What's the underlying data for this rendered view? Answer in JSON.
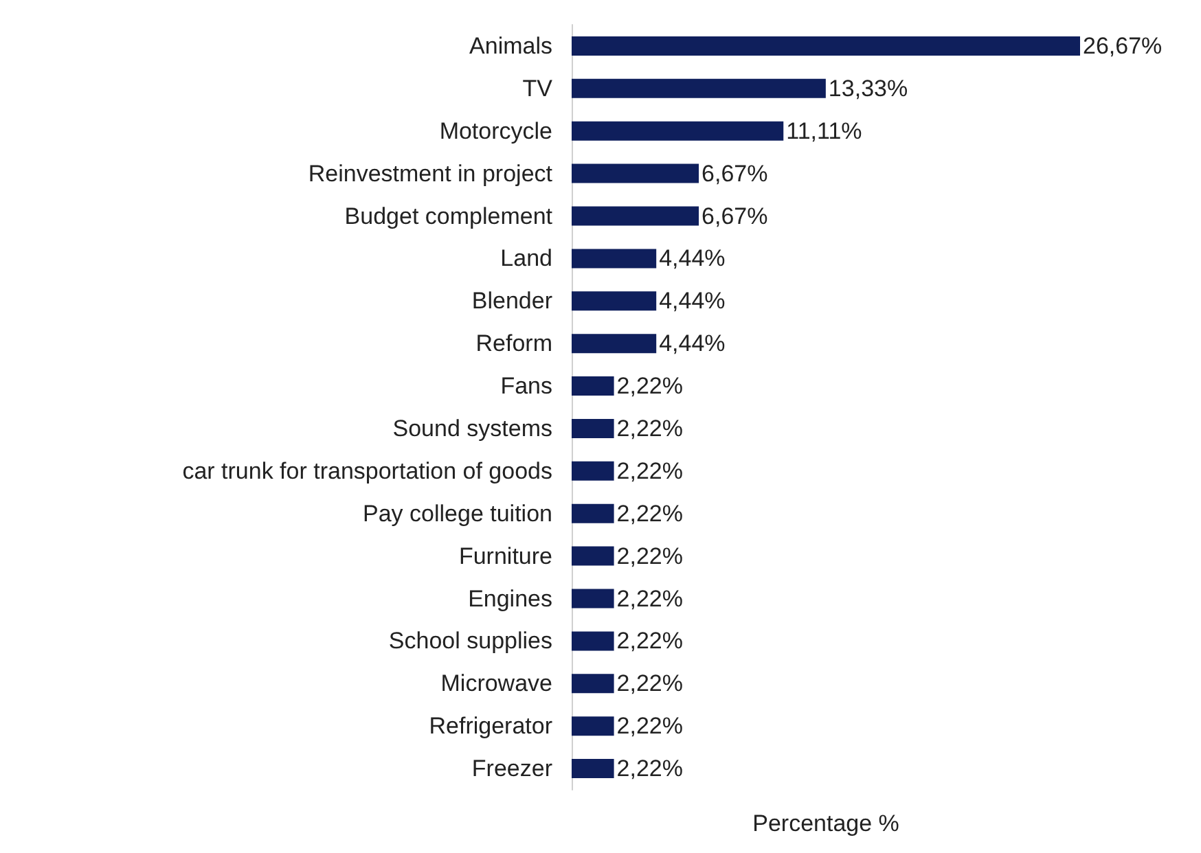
{
  "chart_data": {
    "type": "bar",
    "orientation": "horizontal",
    "xlabel": "Percentage %",
    "categories": [
      "Animals",
      "TV",
      "Motorcycle",
      "Reinvestment in project",
      "Budget complement",
      "Land",
      "Blender",
      "Reform",
      "Fans",
      "Sound systems",
      "car trunk for transportation of goods",
      "Pay college tuition",
      "Furniture",
      "Engines",
      "School supplies",
      "Microwave",
      "Refrigerator",
      "Freezer"
    ],
    "values": [
      26.67,
      13.33,
      11.11,
      6.67,
      6.67,
      4.44,
      4.44,
      4.44,
      2.22,
      2.22,
      2.22,
      2.22,
      2.22,
      2.22,
      2.22,
      2.22,
      2.22,
      2.22
    ],
    "value_labels": [
      "26,67%",
      "13,33%",
      "11,11%",
      "6,67%",
      "6,67%",
      "4,44%",
      "4,44%",
      "4,44%",
      "2,22%",
      "2,22%",
      "2,22%",
      "2,22%",
      "2,22%",
      "2,22%",
      "2,22%",
      "2,22%",
      "2,22%",
      "2,22%"
    ],
    "color": "#0f1f5c"
  }
}
